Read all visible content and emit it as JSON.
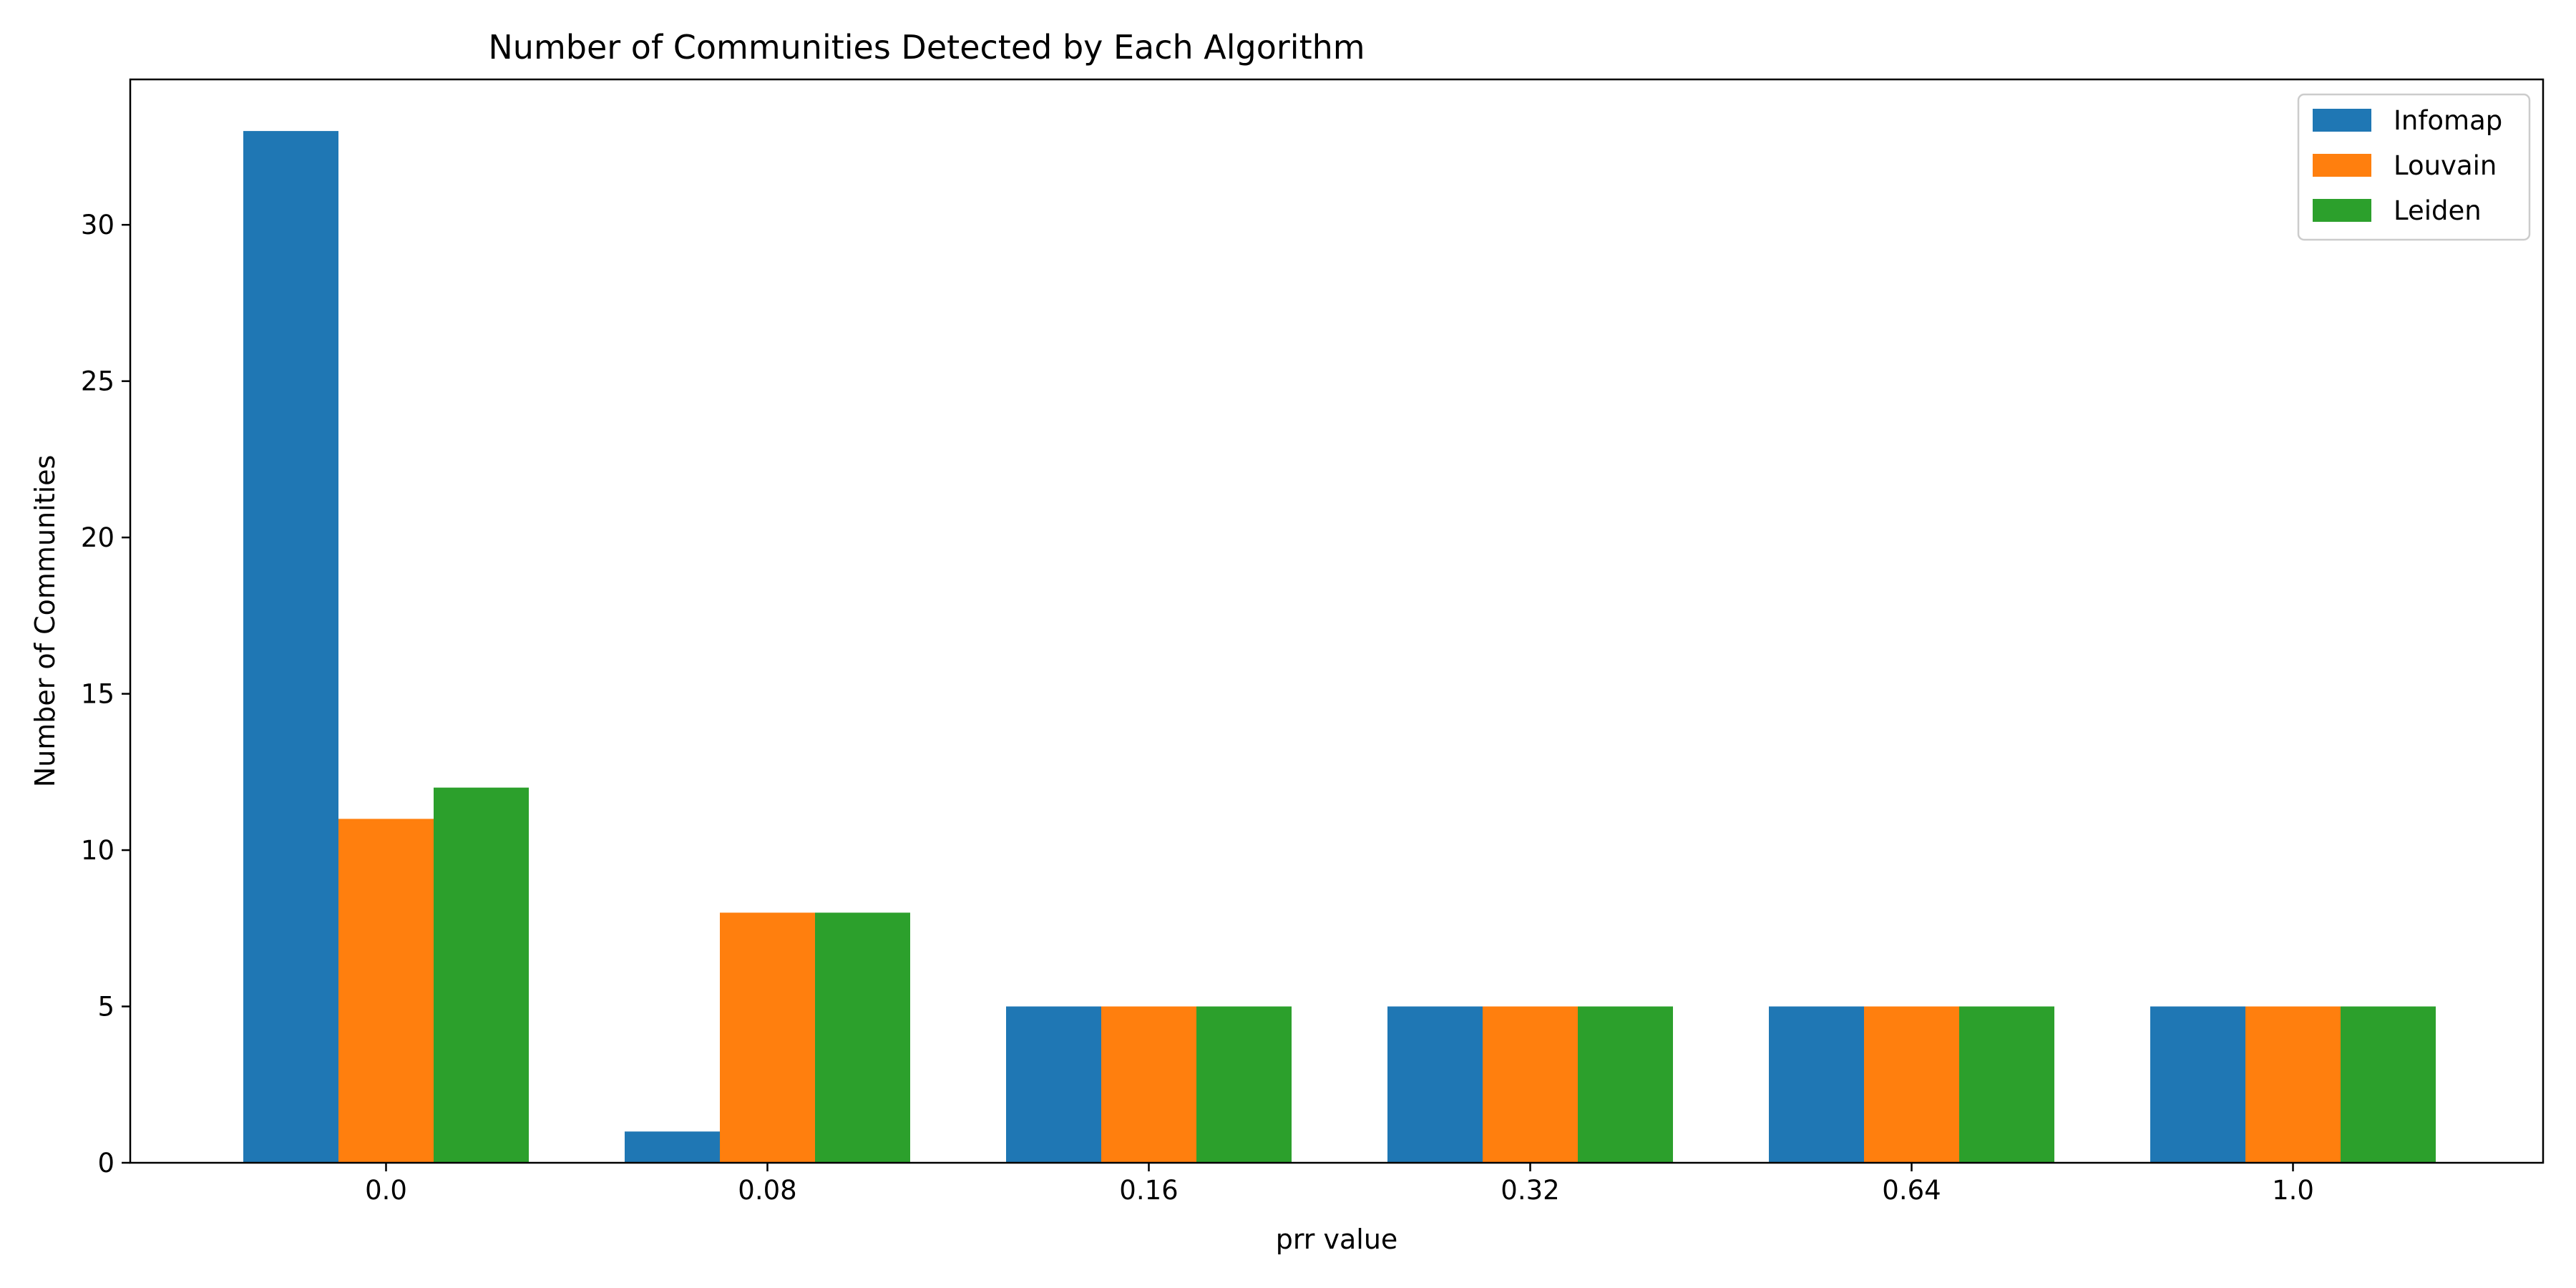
{
  "chart_data": {
    "type": "bar",
    "title": "Number of Communities Detected by Each Algorithm",
    "xlabel": "prr value",
    "ylabel": "Number of Communities",
    "categories": [
      "0.0",
      "0.08",
      "0.16",
      "0.32",
      "0.64",
      "1.0"
    ],
    "series": [
      {
        "name": "Infomap",
        "color": "#1f77b4",
        "values": [
          33,
          1,
          5,
          5,
          5,
          5
        ]
      },
      {
        "name": "Louvain",
        "color": "#ff7f0e",
        "values": [
          11,
          8,
          5,
          5,
          5,
          5
        ]
      },
      {
        "name": "Leiden",
        "color": "#2ca02c",
        "values": [
          12,
          8,
          5,
          5,
          5,
          5
        ]
      }
    ],
    "ylim": [
      0,
      34.65
    ],
    "yticks": [
      0,
      5,
      10,
      15,
      20,
      25,
      30
    ],
    "grid": false,
    "legend_position": "top-right"
  }
}
